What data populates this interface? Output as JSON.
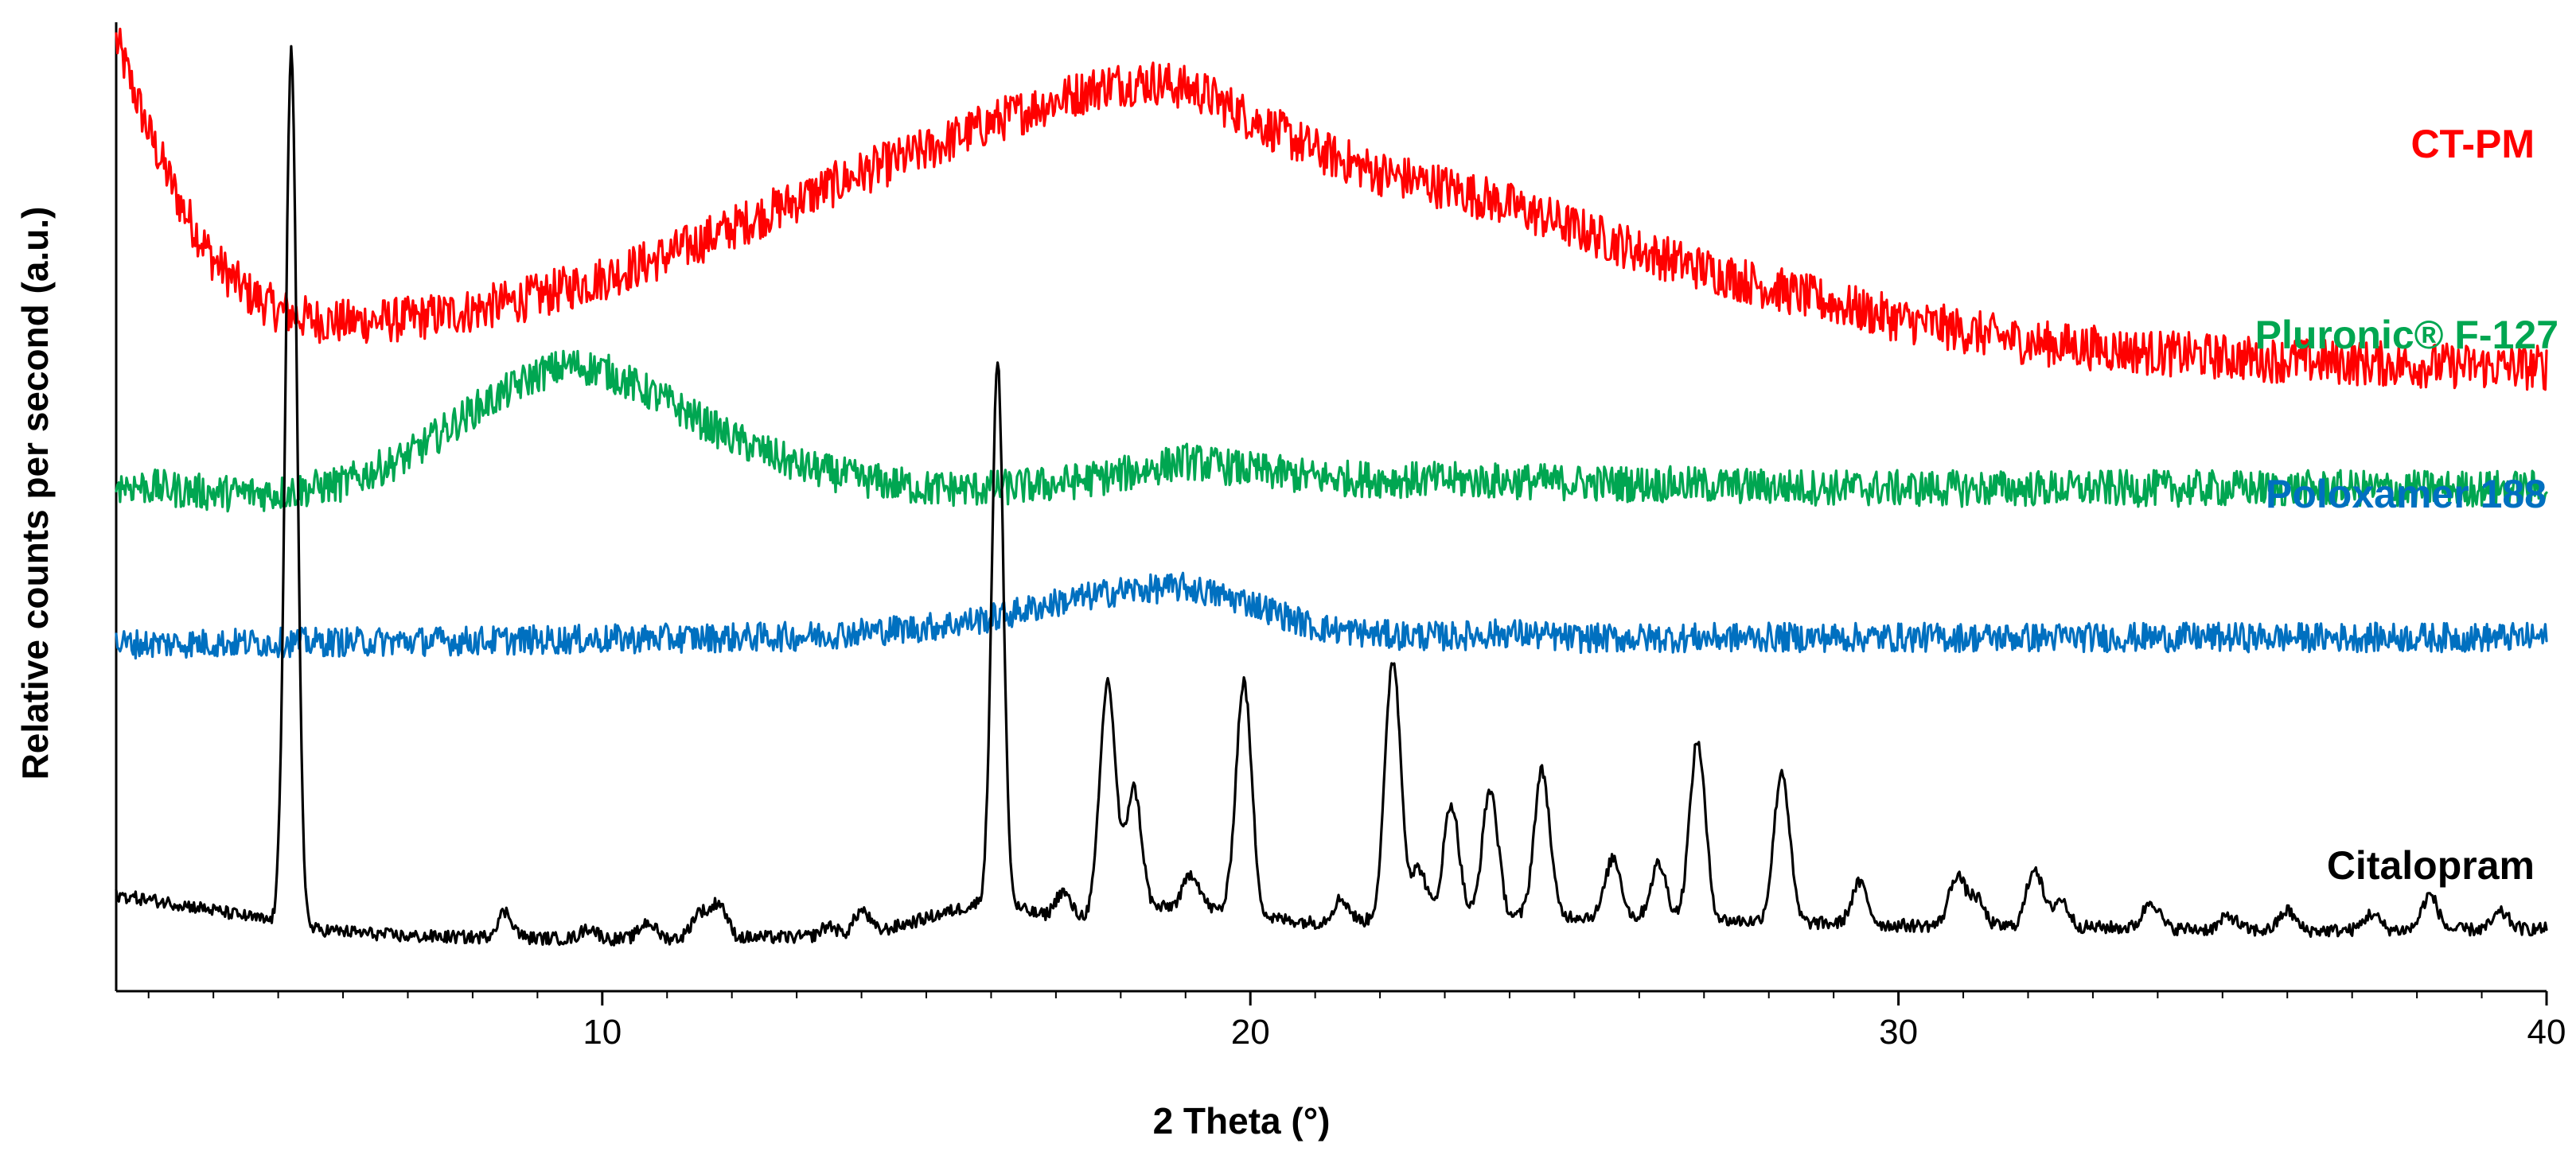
{
  "chart_data": {
    "type": "line",
    "xlabel": "2 Theta (°)",
    "ylabel": "Relative counts per second (a.u.)",
    "xlim": [
      2.5,
      40
    ],
    "xticks": [
      10,
      20,
      30,
      40
    ],
    "x_minor_step": 1,
    "y_ticks_shown": false,
    "grid": false,
    "legend": "labels placed at right end of each trace",
    "series": [
      {
        "name": "CT-PM",
        "color": "#ff0000",
        "noise": 0.25,
        "points": [
          [
            2.5,
            10.4
          ],
          [
            3,
            9.4
          ],
          [
            3.5,
            8.6
          ],
          [
            4,
            8.0
          ],
          [
            4.5,
            7.65
          ],
          [
            5,
            7.45
          ],
          [
            5.5,
            7.35
          ],
          [
            6,
            7.32
          ],
          [
            7,
            7.35
          ],
          [
            8,
            7.45
          ],
          [
            9,
            7.6
          ],
          [
            10,
            7.8
          ],
          [
            11,
            8.05
          ],
          [
            12,
            8.35
          ],
          [
            13,
            8.65
          ],
          [
            14,
            8.95
          ],
          [
            15,
            9.2
          ],
          [
            16,
            9.5
          ],
          [
            17,
            9.75
          ],
          [
            17.8,
            9.92
          ],
          [
            18.5,
            9.95
          ],
          [
            19.2,
            9.85
          ],
          [
            20,
            9.55
          ],
          [
            21,
            9.2
          ],
          [
            22,
            8.95
          ],
          [
            23,
            8.8
          ],
          [
            24,
            8.6
          ],
          [
            25,
            8.35
          ],
          [
            26,
            8.1
          ],
          [
            27,
            7.9
          ],
          [
            28,
            7.7
          ],
          [
            30,
            7.35
          ],
          [
            32,
            7.1
          ],
          [
            34,
            6.98
          ],
          [
            36,
            6.9
          ],
          [
            38,
            6.85
          ],
          [
            40,
            6.82
          ]
        ]
      },
      {
        "name": "Pluronic® F-127",
        "color": "#00a651",
        "noise": 0.2,
        "points": [
          [
            2.5,
            5.55
          ],
          [
            4,
            5.45
          ],
          [
            5,
            5.45
          ],
          [
            6,
            5.55
          ],
          [
            7,
            5.85
          ],
          [
            8,
            6.35
          ],
          [
            9,
            6.75
          ],
          [
            9.5,
            6.85
          ],
          [
            10,
            6.8
          ],
          [
            11,
            6.45
          ],
          [
            12,
            6.05
          ],
          [
            13,
            5.75
          ],
          [
            14,
            5.6
          ],
          [
            15,
            5.5
          ],
          [
            16,
            5.5
          ],
          [
            17,
            5.55
          ],
          [
            18,
            5.65
          ],
          [
            19,
            5.8
          ],
          [
            20,
            5.7
          ],
          [
            21,
            5.62
          ],
          [
            22,
            5.6
          ],
          [
            24,
            5.58
          ],
          [
            26,
            5.55
          ],
          [
            28,
            5.52
          ],
          [
            30,
            5.5
          ],
          [
            35,
            5.5
          ],
          [
            40,
            5.5
          ]
        ]
      },
      {
        "name": "Poloxamer 188",
        "color": "#0070c0",
        "noise": 0.16,
        "points": [
          [
            2.5,
            3.8
          ],
          [
            6,
            3.82
          ],
          [
            10,
            3.85
          ],
          [
            13,
            3.88
          ],
          [
            15,
            3.98
          ],
          [
            16,
            4.08
          ],
          [
            17,
            4.25
          ],
          [
            18,
            4.38
          ],
          [
            19,
            4.42
          ],
          [
            20,
            4.25
          ],
          [
            21,
            3.98
          ],
          [
            22,
            3.9
          ],
          [
            23,
            3.88
          ],
          [
            24,
            3.92
          ],
          [
            25,
            3.86
          ],
          [
            28,
            3.87
          ],
          [
            32,
            3.87
          ],
          [
            36,
            3.87
          ],
          [
            40,
            3.87
          ]
        ]
      },
      {
        "name": "Citalopram",
        "color": "#000000",
        "noise": 0.07,
        "baseline": [
          [
            2.5,
            1.05
          ],
          [
            3.5,
            0.95
          ],
          [
            4.5,
            0.82
          ],
          [
            5.5,
            0.68
          ],
          [
            7,
            0.6
          ],
          [
            10,
            0.57
          ],
          [
            14,
            0.6
          ],
          [
            15,
            0.8
          ],
          [
            16,
            1.0
          ],
          [
            17,
            0.78
          ],
          [
            18,
            0.85
          ],
          [
            19,
            0.95
          ],
          [
            20,
            0.82
          ],
          [
            21,
            0.75
          ],
          [
            23,
            0.8
          ],
          [
            25,
            0.82
          ],
          [
            27,
            0.78
          ],
          [
            30,
            0.72
          ],
          [
            33,
            0.7
          ],
          [
            36,
            0.66
          ],
          [
            40,
            0.68
          ]
        ],
        "peaks": [
          [
            5.2,
            9.55
          ],
          [
            8.5,
            0.28
          ],
          [
            9.8,
            0.12
          ],
          [
            10.7,
            0.18
          ],
          [
            11.5,
            0.28
          ],
          [
            11.8,
            0.38
          ],
          [
            13.5,
            0.12
          ],
          [
            14.0,
            0.28
          ],
          [
            16.1,
            5.9
          ],
          [
            17.1,
            0.3
          ],
          [
            17.8,
            2.55
          ],
          [
            18.2,
            1.35
          ],
          [
            19.1,
            0.35
          ],
          [
            19.9,
            2.55
          ],
          [
            21.4,
            0.25
          ],
          [
            22.2,
            2.85
          ],
          [
            22.6,
            0.55
          ],
          [
            23.1,
            1.25
          ],
          [
            23.7,
            1.4
          ],
          [
            24.5,
            1.6
          ],
          [
            25.6,
            0.65
          ],
          [
            26.3,
            0.6
          ],
          [
            26.9,
            1.95
          ],
          [
            28.2,
            1.65
          ],
          [
            29.4,
            0.45
          ],
          [
            30.9,
            0.55
          ],
          [
            31.2,
            0.3
          ],
          [
            32.1,
            0.65
          ],
          [
            32.5,
            0.3
          ],
          [
            33.9,
            0.3
          ],
          [
            35.1,
            0.15
          ],
          [
            36.0,
            0.22
          ],
          [
            37.3,
            0.18
          ],
          [
            38.2,
            0.38
          ],
          [
            39.3,
            0.18
          ]
        ]
      }
    ]
  }
}
